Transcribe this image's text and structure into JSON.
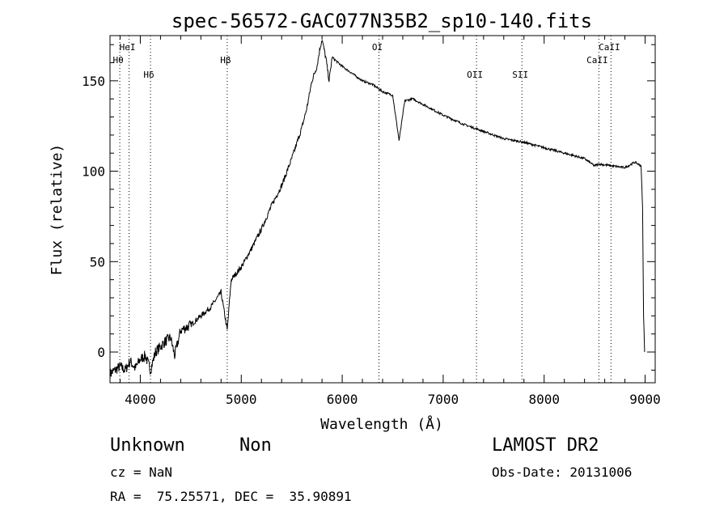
{
  "chart_data": {
    "type": "line",
    "title": "spec-56572-GAC077N35B2_sp10-140.fits",
    "xlabel": "Wavelength (Å)",
    "ylabel": "Flux (relative)",
    "xlim": [
      3700,
      9100
    ],
    "ylim": [
      -17,
      175
    ],
    "xticks": [
      4000,
      5000,
      6000,
      7000,
      8000,
      9000
    ],
    "yticks": [
      0,
      50,
      100,
      150
    ],
    "series": [
      {
        "x": [
          3700,
          3800,
          3850,
          3900,
          3950,
          4000,
          4050,
          4101,
          4150,
          4200,
          4250,
          4300,
          4340,
          4400,
          4500,
          4600,
          4700,
          4800,
          4861,
          4900,
          5000,
          5100,
          5200,
          5300,
          5400,
          5500,
          5600,
          5650,
          5700,
          5750,
          5780,
          5800,
          5840,
          5870,
          5900,
          6000,
          6100,
          6200,
          6300,
          6400,
          6500,
          6563,
          6620,
          6700,
          6800,
          7000,
          7200,
          7400,
          7600,
          7800,
          8000,
          8200,
          8400,
          8498,
          8542,
          8662,
          8800,
          8900,
          8960,
          8975,
          8985,
          8995
        ],
        "y": [
          -12,
          -8,
          -10,
          -5,
          -9,
          -4,
          -2,
          -10,
          0,
          3,
          6,
          8,
          -2,
          12,
          15,
          20,
          25,
          33,
          12,
          40,
          47,
          57,
          68,
          81,
          92,
          107,
          124,
          135,
          150,
          158,
          168,
          173,
          162,
          150,
          163,
          158,
          154,
          150,
          148,
          144,
          142,
          117,
          139,
          140,
          137,
          131,
          126,
          122,
          118,
          116,
          113,
          110,
          107,
          103,
          104,
          103,
          102,
          105,
          103,
          80,
          20,
          0
        ]
      }
    ],
    "lines": [
      {
        "label": "HeI",
        "wavelength": 3889
      },
      {
        "label": "Hθ",
        "wavelength": 3797
      },
      {
        "label": "Hδ",
        "wavelength": 4101
      },
      {
        "label": "Hβ",
        "wavelength": 4861
      },
      {
        "label": "OI",
        "wavelength": 6364
      },
      {
        "label": "OII",
        "wavelength": 7330
      },
      {
        "label": "SII",
        "wavelength": 7780
      },
      {
        "label": "CaII",
        "wavelength": 8542
      },
      {
        "label": "CaII",
        "wavelength": 8662
      }
    ],
    "grid": false
  },
  "info": {
    "object_class": "Unknown",
    "object_subclass": "Non",
    "survey": "LAMOST DR2",
    "cz": "cz = NaN",
    "obs_date": "Obs-Date: 20131006",
    "radec": "RA =  75.25571, DEC =  35.90891"
  }
}
